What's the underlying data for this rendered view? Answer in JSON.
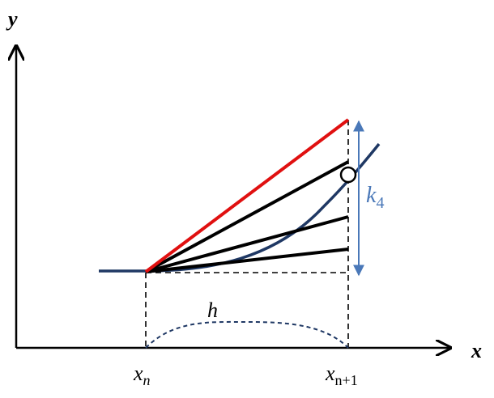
{
  "labels": {
    "y_axis": "y",
    "x_axis": "x",
    "xn": {
      "base": "x",
      "sub": "n"
    },
    "xn1": {
      "base": "x",
      "sub": "n+1"
    },
    "h": "h",
    "k4": {
      "base": "k",
      "sub": "4"
    }
  }
}
